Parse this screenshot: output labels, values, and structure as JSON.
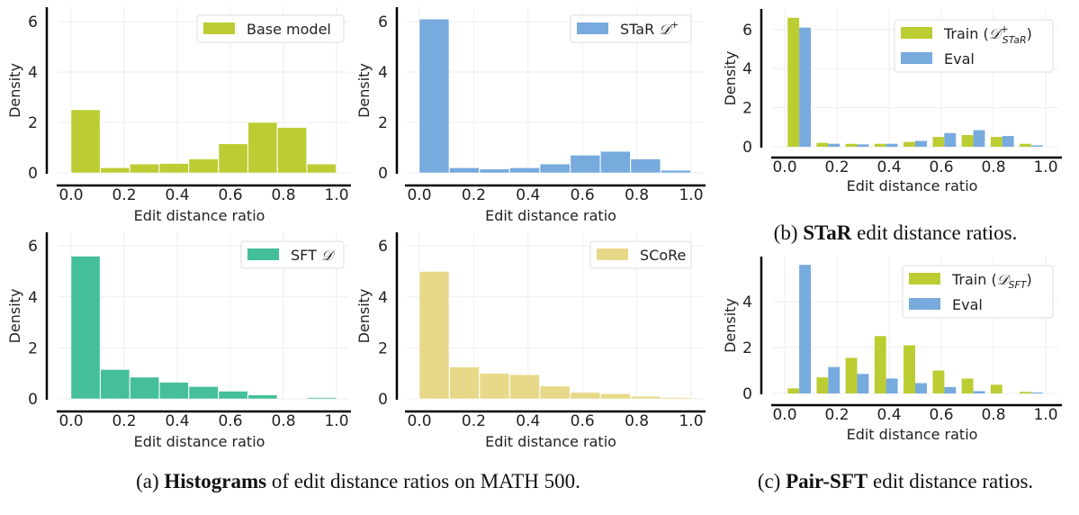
{
  "colors": {
    "base": "#bccd33",
    "star": "#77aadd",
    "sft": "#44bf9a",
    "score": "#e8d98a",
    "train": "#bccd33",
    "eval": "#77aadd"
  },
  "captions": {
    "a": {
      "prefix": "(a) ",
      "bold": "Histograms",
      "rest": " of edit distance ratios on MATH 500."
    },
    "b": {
      "prefix": "(b) ",
      "bold": "STaR",
      "rest": " edit distance ratios."
    },
    "c": {
      "prefix": "(c) ",
      "bold": "Pair-SFT",
      "rest": " edit distance ratios."
    }
  },
  "chart_data": [
    {
      "id": "a1",
      "type": "bar",
      "xlabel": "Edit distance ratio",
      "ylabel": "Density",
      "xlim": [
        0,
        1
      ],
      "ylim": [
        0,
        6.5
      ],
      "xticks": [
        "0.0",
        "0.2",
        "0.4",
        "0.6",
        "0.8",
        "1.0"
      ],
      "yticks": [
        "0",
        "2",
        "4",
        "6"
      ],
      "grid": true,
      "legend": "top-right",
      "bin_edges": [
        0,
        0.111,
        0.222,
        0.333,
        0.444,
        0.556,
        0.667,
        0.778,
        0.889,
        1.0
      ],
      "series": [
        {
          "name": "Base model",
          "color": "#bccd33",
          "values": [
            2.5,
            0.2,
            0.35,
            0.37,
            0.55,
            1.15,
            2.0,
            1.8,
            0.35
          ]
        }
      ]
    },
    {
      "id": "a2",
      "type": "bar",
      "xlabel": "Edit distance ratio",
      "ylabel": "Density",
      "xlim": [
        0,
        1
      ],
      "ylim": [
        0,
        6.5
      ],
      "xticks": [
        "0.0",
        "0.2",
        "0.4",
        "0.6",
        "0.8",
        "1.0"
      ],
      "yticks": [
        "0",
        "2",
        "4",
        "6"
      ],
      "grid": true,
      "legend": "top-right",
      "bin_edges": [
        0,
        0.111,
        0.222,
        0.333,
        0.444,
        0.556,
        0.667,
        0.778,
        0.889,
        1.0
      ],
      "series": [
        {
          "name": "STaR 𝒟⁺",
          "color": "#77aadd",
          "values": [
            6.1,
            0.2,
            0.15,
            0.2,
            0.35,
            0.7,
            0.85,
            0.55,
            0.1
          ]
        }
      ]
    },
    {
      "id": "a3",
      "type": "bar",
      "xlabel": "Edit distance ratio",
      "ylabel": "Density",
      "xlim": [
        0,
        1
      ],
      "ylim": [
        0,
        6.5
      ],
      "xticks": [
        "0.0",
        "0.2",
        "0.4",
        "0.6",
        "0.8",
        "1.0"
      ],
      "yticks": [
        "0",
        "2",
        "4",
        "6"
      ],
      "grid": true,
      "legend": "top-right",
      "bin_edges": [
        0,
        0.111,
        0.222,
        0.333,
        0.444,
        0.556,
        0.667,
        0.778,
        0.889,
        1.0
      ],
      "series": [
        {
          "name": "SFT 𝒟",
          "color": "#44bf9a",
          "values": [
            5.6,
            1.15,
            0.85,
            0.65,
            0.48,
            0.3,
            0.15,
            0,
            0.05
          ]
        }
      ]
    },
    {
      "id": "a4",
      "type": "bar",
      "xlabel": "Edit distance ratio",
      "ylabel": "Density",
      "xlim": [
        0,
        1
      ],
      "ylim": [
        0,
        6.5
      ],
      "xticks": [
        "0.0",
        "0.2",
        "0.4",
        "0.6",
        "0.8",
        "1.0"
      ],
      "yticks": [
        "0",
        "2",
        "4",
        "6"
      ],
      "grid": true,
      "legend": "top-right",
      "bin_edges": [
        0,
        0.111,
        0.222,
        0.333,
        0.444,
        0.556,
        0.667,
        0.778,
        0.889,
        1.0
      ],
      "series": [
        {
          "name": "SCoRe",
          "color": "#e8d98a",
          "values": [
            5.0,
            1.25,
            1.0,
            0.95,
            0.5,
            0.25,
            0.2,
            0.1,
            0.05
          ]
        }
      ]
    },
    {
      "id": "b",
      "type": "bar",
      "xlabel": "Edit distance ratio",
      "ylabel": "Density",
      "xlim": [
        0,
        1
      ],
      "ylim": [
        0,
        6.9
      ],
      "xticks": [
        "0.0",
        "0.2",
        "0.4",
        "0.6",
        "0.8",
        "1.0"
      ],
      "yticks": [
        "0",
        "2",
        "4",
        "6"
      ],
      "grid": true,
      "legend": "top-right",
      "bin_edges": [
        0,
        0.111,
        0.222,
        0.333,
        0.444,
        0.556,
        0.667,
        0.778,
        0.889,
        1.0
      ],
      "series": [
        {
          "name": "Train (𝒟⁺_STaR)",
          "color": "#bccd33",
          "values": [
            6.6,
            0.2,
            0.15,
            0.15,
            0.25,
            0.5,
            0.6,
            0.5,
            0.15
          ]
        },
        {
          "name": "Eval",
          "color": "#77aadd",
          "values": [
            6.1,
            0.15,
            0.12,
            0.15,
            0.3,
            0.7,
            0.85,
            0.55,
            0.07
          ]
        }
      ]
    },
    {
      "id": "c",
      "type": "bar",
      "xlabel": "Edit distance ratio",
      "ylabel": "Density",
      "xlim": [
        0,
        1
      ],
      "ylim": [
        0,
        5.9
      ],
      "xticks": [
        "0.0",
        "0.2",
        "0.4",
        "0.6",
        "0.8",
        "1.0"
      ],
      "yticks": [
        "0",
        "2",
        "4"
      ],
      "grid": true,
      "legend": "top-right",
      "bin_edges": [
        0,
        0.111,
        0.222,
        0.333,
        0.444,
        0.556,
        0.667,
        0.778,
        0.889,
        1.0
      ],
      "series": [
        {
          "name": "Train (𝒟_SFT)",
          "color": "#bccd33",
          "values": [
            0.22,
            0.7,
            1.55,
            2.5,
            2.1,
            1.0,
            0.65,
            0.38,
            0.07
          ]
        },
        {
          "name": "Eval",
          "color": "#77aadd",
          "values": [
            5.6,
            1.15,
            0.85,
            0.65,
            0.45,
            0.28,
            0.1,
            0,
            0.04
          ]
        }
      ]
    }
  ]
}
